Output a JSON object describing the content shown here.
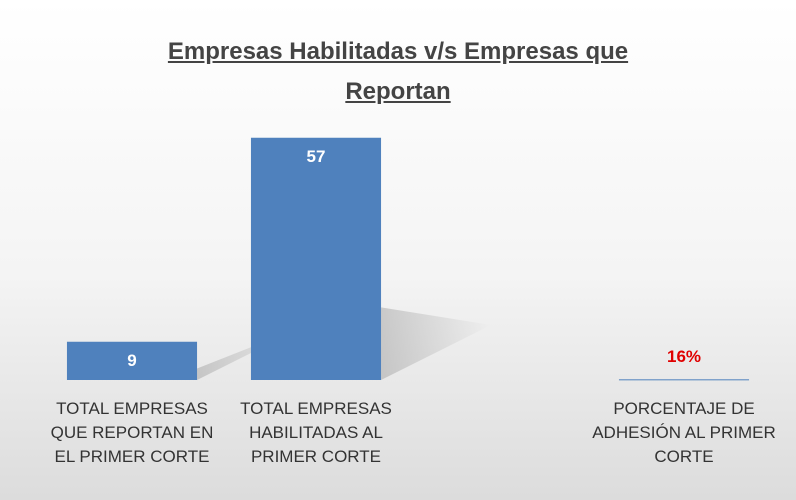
{
  "chart_data": {
    "type": "bar",
    "title": "Empresas Habilitadas v/s Empresas que Reportan",
    "categories": [
      "TOTAL EMPRESAS QUE REPORTAN EN EL PRIMER CORTE",
      "TOTAL EMPRESAS HABILITADAS AL PRIMER CORTE",
      null,
      "PORCENTAJE DE ADHESIÓN AL PRIMER CORTE"
    ],
    "values": [
      9,
      57,
      null,
      0.16
    ],
    "value_labels": [
      "9",
      "57",
      null,
      "16%"
    ],
    "value_label_colors": [
      "#ffffff",
      "#ffffff",
      null,
      "#e00000"
    ],
    "color": "#4f81bd",
    "ylim": [
      0,
      60
    ]
  }
}
